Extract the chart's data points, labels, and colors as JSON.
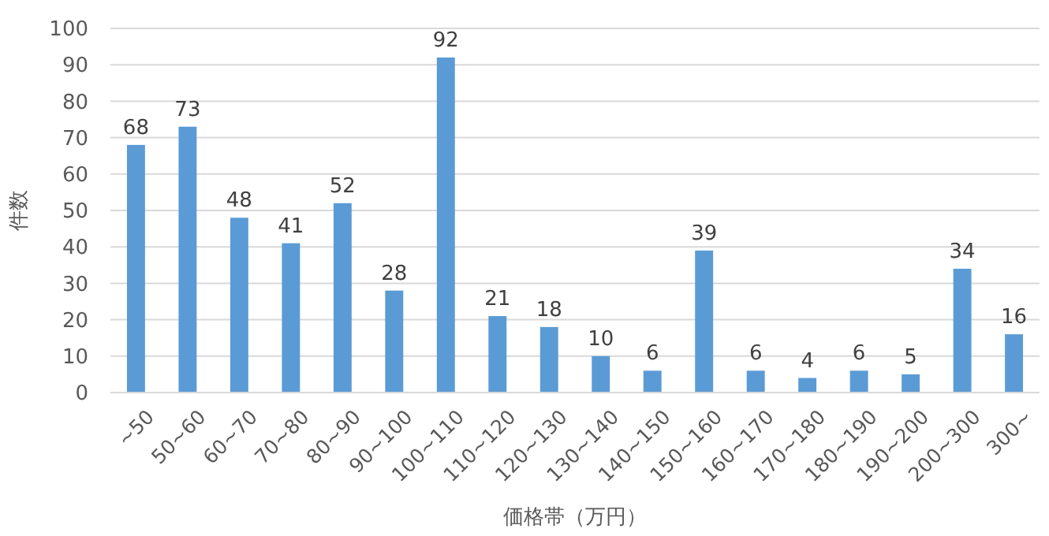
{
  "chart_data": {
    "type": "bar",
    "categories": [
      "~50",
      "50~60",
      "60~70",
      "70~80",
      "80~90",
      "90~100",
      "100~110",
      "110~120",
      "120~130",
      "130~140",
      "140~150",
      "150~160",
      "160~170",
      "170~180",
      "180~190",
      "190~200",
      "200~300",
      "300~"
    ],
    "values": [
      68,
      73,
      48,
      41,
      52,
      28,
      92,
      21,
      18,
      10,
      6,
      39,
      6,
      4,
      6,
      5,
      34,
      16
    ],
    "color": "#5b9bd5",
    "xlabel": "価格帯（万円）",
    "ylabel": "件数",
    "ylim": [
      0,
      100
    ],
    "yticks": [
      0,
      10,
      20,
      30,
      40,
      50,
      60,
      70,
      80,
      90,
      100
    ],
    "grid": "y",
    "data_labels": true
  }
}
